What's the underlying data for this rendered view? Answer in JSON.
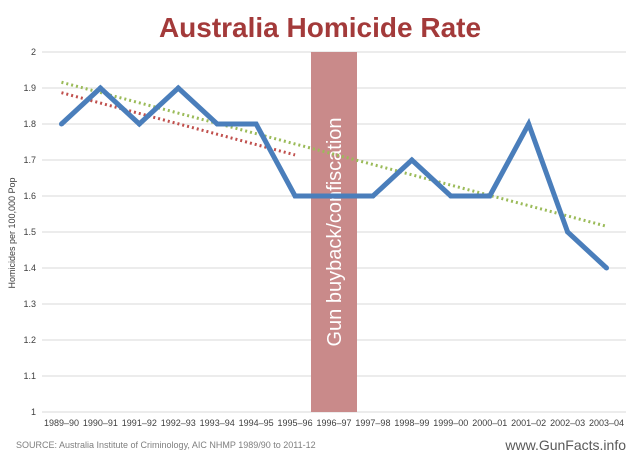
{
  "colors": {
    "title": "#a33a3a",
    "series": "#4a7ebb",
    "trend_before": "#c0504d",
    "trend_overall": "#9bbb59",
    "band": "#c98a8a",
    "grid": "#d9d9d9",
    "text": "#404040",
    "source": "#7f7f7f"
  },
  "footer": {
    "source": "SOURCE: Australia Institute of Criminology, AIC NHMP 1989/90 to 2011-12",
    "brand": "www.GunFacts.info"
  },
  "chart_data": {
    "type": "line",
    "title": "Australia Homicide Rate",
    "xlabel": "",
    "ylabel": "Homicides per 100,000 Pop",
    "ylim": [
      1,
      2
    ],
    "yticks": [
      1,
      1.1,
      1.2,
      1.3,
      1.4,
      1.5,
      1.6,
      1.7,
      1.8,
      1.9,
      2
    ],
    "ytick_labels": [
      "1",
      "1.1",
      "1.2",
      "1.3",
      "1.4",
      "1.5",
      "1.6",
      "1.7",
      "1.8",
      "1.9",
      "2"
    ],
    "grid": true,
    "categories": [
      "1989–90",
      "1990–91",
      "1991–92",
      "1992–93",
      "1993–94",
      "1994–95",
      "1995–96",
      "1996–97",
      "1997–98",
      "1998–99",
      "1999–00",
      "2000–01",
      "2001–02",
      "2002–03",
      "2003–04"
    ],
    "series": [
      {
        "values": [
          1.8,
          1.9,
          1.8,
          1.9,
          1.8,
          1.8,
          1.6,
          1.6,
          1.6,
          1.7,
          1.6,
          1.6,
          1.8,
          1.5,
          1.4
        ]
      }
    ],
    "trendlines": [
      {
        "style": "dotted",
        "color": "#c0504d",
        "from_category": 0,
        "to_category": 6,
        "start": 1.887,
        "end": 1.714
      },
      {
        "style": "dotted",
        "color": "#9bbb59",
        "from_category": 0,
        "to_category": 14,
        "start": 1.916,
        "end": 1.516
      }
    ],
    "highlight": {
      "category_index": 7,
      "label": "Gun buyback/confiscation"
    }
  }
}
